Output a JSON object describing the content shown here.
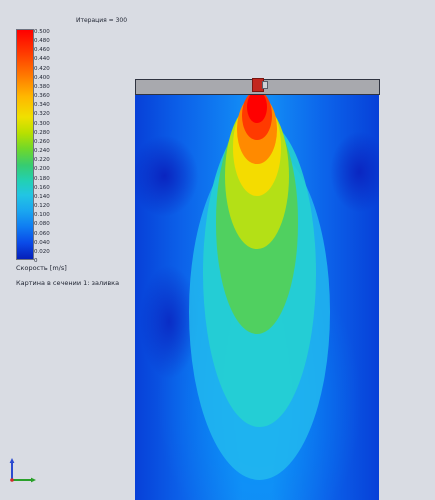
{
  "viewport": {
    "iteration_label": "Итерация = 300",
    "legend": {
      "ticks": [
        "0.500",
        "0.480",
        "0.460",
        "0.440",
        "0.420",
        "0.400",
        "0.380",
        "0.360",
        "0.340",
        "0.320",
        "0.300",
        "0.280",
        "0.260",
        "0.240",
        "0.220",
        "0.200",
        "0.180",
        "0.160",
        "0.140",
        "0.120",
        "0.100",
        "0.080",
        "0.060",
        "0.040",
        "0.020",
        "0"
      ],
      "quantity_label": "Скорость [m/s]",
      "max": 0.5,
      "min": 0
    },
    "plot_caption": "Картина в сечении 1: заливка",
    "colors": {
      "background": "#d9dce3",
      "high": "#ff0000",
      "mid": "#f0e000",
      "low": "#061fb8"
    },
    "axis_triad_icon": "axis-triad-icon"
  }
}
